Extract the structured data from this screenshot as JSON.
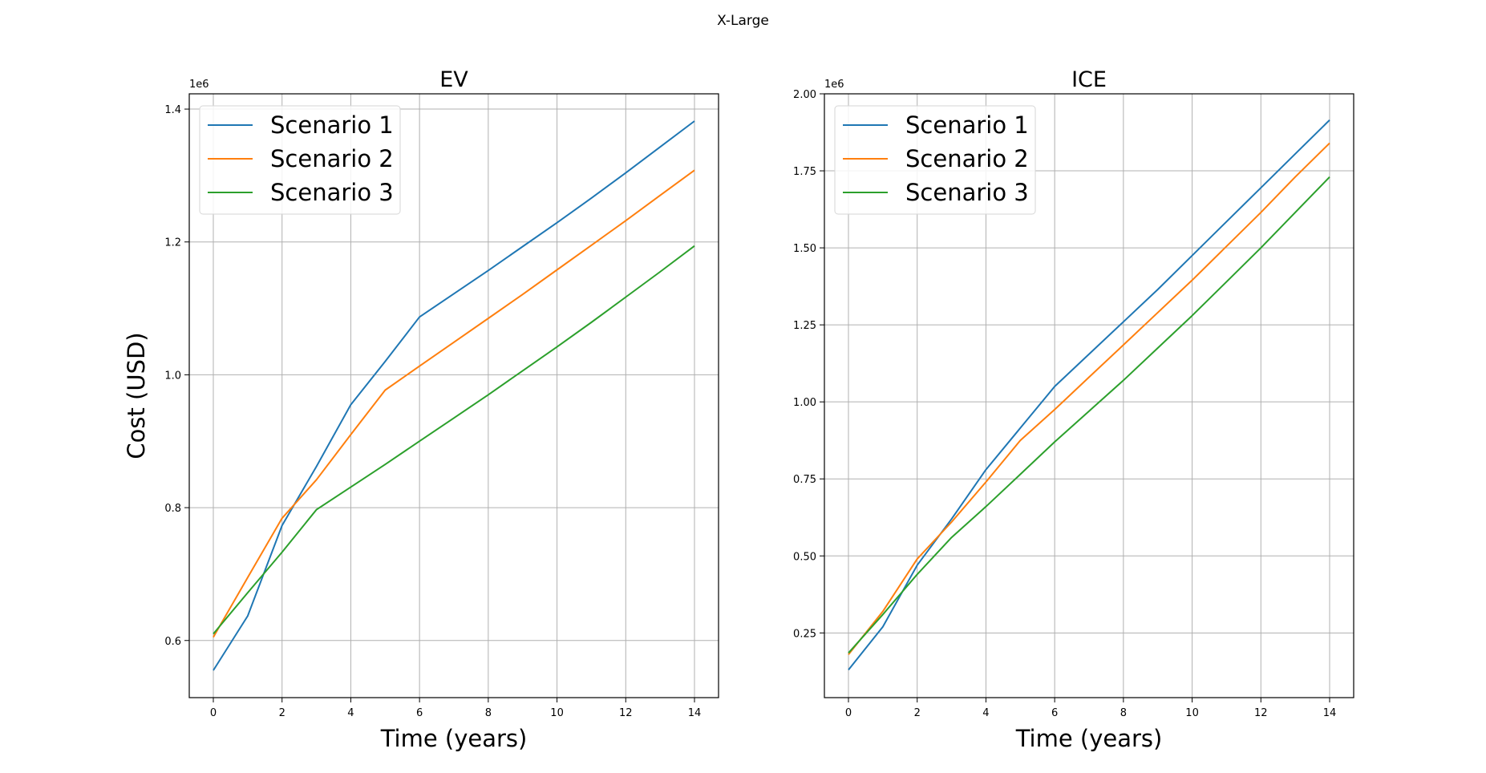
{
  "figure": {
    "suptitle": "X-Large"
  },
  "chart_data": [
    {
      "type": "line",
      "title": "EV",
      "xlabel": "Time (years)",
      "ylabel": "Cost (USD)",
      "y_offset_label": "1e6",
      "xlim": [
        -0.7,
        14.7
      ],
      "ylim": [
        0.514,
        1.423
      ],
      "xticks": [
        0,
        2,
        4,
        6,
        8,
        10,
        12,
        14
      ],
      "yticks": [
        0.6,
        0.8,
        1.0,
        1.2,
        1.4
      ],
      "ytick_labels": [
        "0.6",
        "0.8",
        "1.0",
        "1.2",
        "1.4"
      ],
      "grid": true,
      "legend_position": "upper-left",
      "x": [
        0,
        1,
        2,
        3,
        4,
        5,
        6,
        7,
        8,
        9,
        10,
        11,
        12,
        13,
        14
      ],
      "series": [
        {
          "name": "Scenario 1",
          "color": "#1f77b4",
          "values": [
            0.555,
            0.637,
            0.773,
            0.862,
            0.955,
            1.02,
            1.087,
            1.122,
            1.157,
            1.193,
            1.229,
            1.266,
            1.304,
            1.343,
            1.382
          ]
        },
        {
          "name": "Scenario 2",
          "color": "#ff7f0e",
          "values": [
            0.605,
            0.695,
            0.784,
            0.842,
            0.91,
            0.977,
            1.013,
            1.049,
            1.085,
            1.121,
            1.158,
            1.195,
            1.232,
            1.27,
            1.308
          ]
        },
        {
          "name": "Scenario 3",
          "color": "#2ca02c",
          "values": [
            0.61,
            0.672,
            0.733,
            0.797,
            0.831,
            0.865,
            0.9,
            0.935,
            0.97,
            1.006,
            1.042,
            1.079,
            1.117,
            1.155,
            1.194
          ]
        }
      ]
    },
    {
      "type": "line",
      "title": "ICE",
      "xlabel": "Time (years)",
      "ylabel": "",
      "y_offset_label": "1e6",
      "xlim": [
        -0.7,
        14.7
      ],
      "ylim": [
        0.04,
        2.0
      ],
      "xticks": [
        0,
        2,
        4,
        6,
        8,
        10,
        12,
        14
      ],
      "yticks": [
        0.25,
        0.5,
        0.75,
        1.0,
        1.25,
        1.5,
        1.75,
        2.0
      ],
      "ytick_labels": [
        "0.25",
        "0.50",
        "0.75",
        "1.00",
        "1.25",
        "1.50",
        "1.75",
        "2.00"
      ],
      "grid": true,
      "legend_position": "upper-left",
      "x": [
        0,
        1,
        2,
        3,
        4,
        5,
        6,
        7,
        8,
        9,
        10,
        11,
        12,
        13,
        14
      ],
      "series": [
        {
          "name": "Scenario 1",
          "color": "#1f77b4",
          "values": [
            0.13,
            0.27,
            0.47,
            0.62,
            0.78,
            0.915,
            1.05,
            1.155,
            1.26,
            1.365,
            1.475,
            1.585,
            1.695,
            1.805,
            1.915
          ]
        },
        {
          "name": "Scenario 2",
          "color": "#ff7f0e",
          "values": [
            0.18,
            0.32,
            0.49,
            0.61,
            0.74,
            0.875,
            0.975,
            1.08,
            1.185,
            1.29,
            1.395,
            1.505,
            1.615,
            1.73,
            1.84
          ]
        },
        {
          "name": "Scenario 3",
          "color": "#2ca02c",
          "values": [
            0.185,
            0.31,
            0.44,
            0.56,
            0.66,
            0.765,
            0.87,
            0.97,
            1.07,
            1.175,
            1.28,
            1.39,
            1.5,
            1.615,
            1.73
          ]
        }
      ]
    }
  ]
}
